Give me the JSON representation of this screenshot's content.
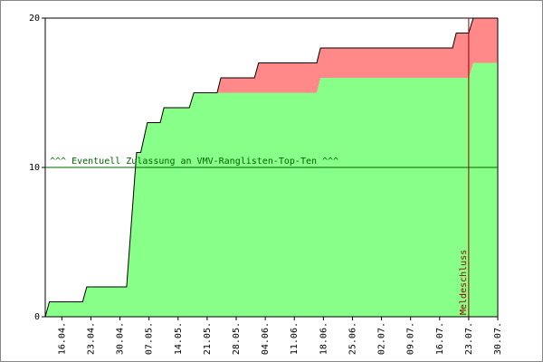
{
  "chart_data": {
    "type": "stacked-area",
    "x": [
      102,
      103,
      111,
      112,
      121.6,
      124,
      125,
      126.6,
      129.7,
      130.6,
      136.7,
      137.8,
      143.4,
      144.3,
      152.4,
      153.4,
      167.4,
      168.3,
      200.1,
      201,
      204,
      205.1,
      211
    ],
    "series": [
      {
        "color": "#88ff88",
        "values": [
          0,
          1,
          1,
          2,
          2,
          11,
          11,
          13,
          13,
          14,
          14,
          15,
          15,
          15,
          15,
          15,
          15,
          16,
          16,
          16,
          16,
          17,
          17
        ]
      },
      {
        "color": "#ff8888",
        "values": [
          0,
          0,
          0,
          0,
          0,
          0,
          0,
          0,
          0,
          0,
          0,
          0,
          0,
          1,
          1,
          2,
          2,
          2,
          2,
          3,
          3,
          3,
          3
        ]
      }
    ],
    "xlim": [
      102,
      211
    ],
    "xticks": [
      {
        "value": 106,
        "label": "16.04."
      },
      {
        "value": 113,
        "label": "23.04."
      },
      {
        "value": 120,
        "label": "30.04."
      },
      {
        "value": 127,
        "label": "07.05."
      },
      {
        "value": 134,
        "label": "14.05."
      },
      {
        "value": 141,
        "label": "21.05."
      },
      {
        "value": 148,
        "label": "28.05."
      },
      {
        "value": 155,
        "label": "04.06."
      },
      {
        "value": 162,
        "label": "11.06."
      },
      {
        "value": 169,
        "label": "18.06."
      },
      {
        "value": 176,
        "label": "25.06."
      },
      {
        "value": 183,
        "label": "02.07."
      },
      {
        "value": 190,
        "label": "09.07."
      },
      {
        "value": 197,
        "label": "16.07."
      },
      {
        "value": 204,
        "label": "23.07."
      },
      {
        "value": 211,
        "label": "30.07."
      }
    ],
    "ylim": [
      0,
      20
    ],
    "yticks": [
      0,
      10,
      20
    ],
    "hline": {
      "value": 10,
      "label": "^^^ Eventuell Zulassung an VMV-Ranglisten-Top-Ten ^^^",
      "color": "#006600"
    },
    "vline": {
      "value": 204,
      "label": "Meldeschluss",
      "color": "#990000"
    }
  }
}
